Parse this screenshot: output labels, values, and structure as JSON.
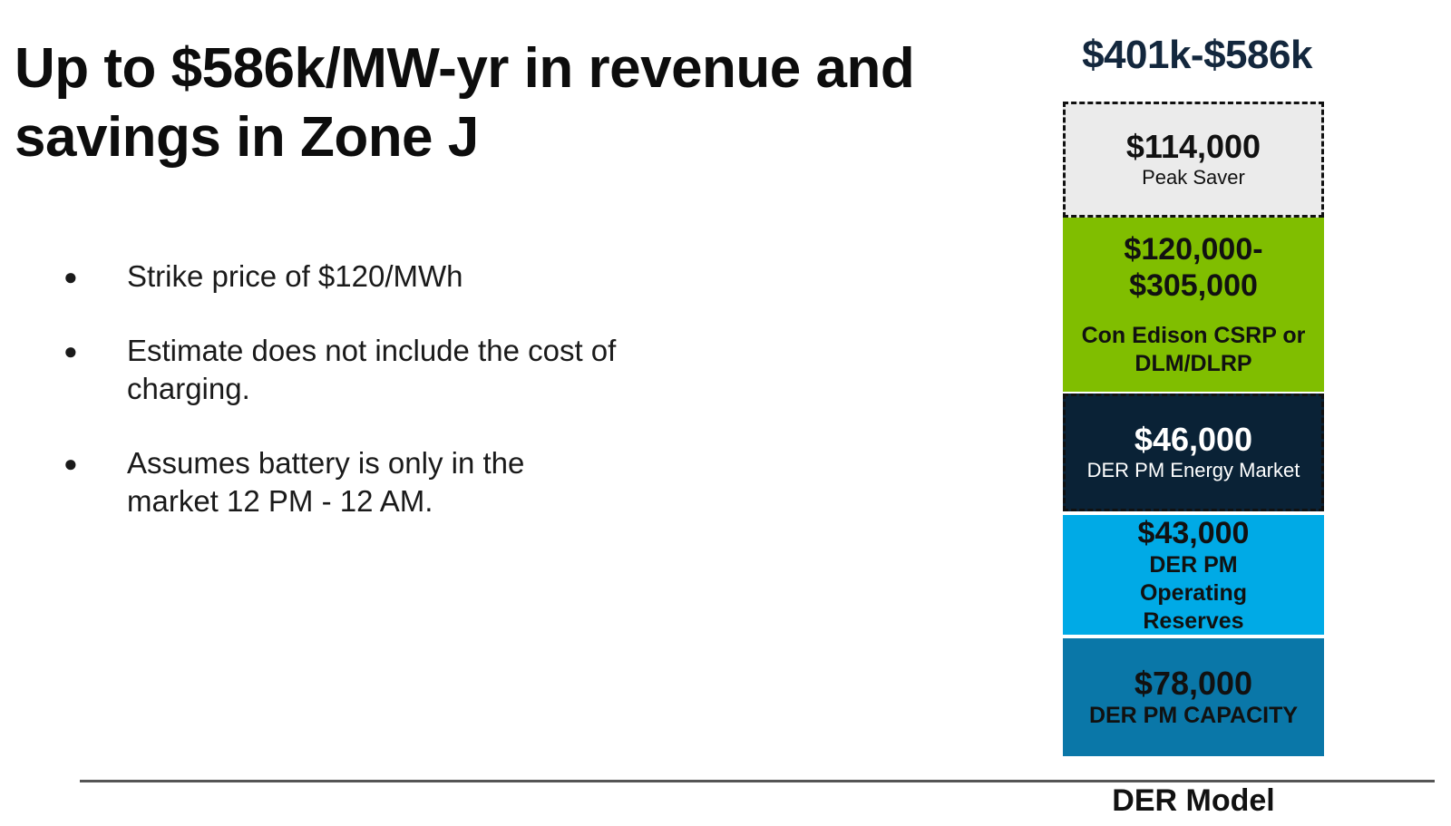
{
  "slide": {
    "title": "Up to $586k/MW-yr in revenue and savings in Zone J",
    "bullets": [
      "Strike price of $120/MWh",
      "Estimate does not include the cost of charging.",
      "Assumes battery is only in the market 12 PM - 12 AM."
    ]
  },
  "chart_data": {
    "type": "bar",
    "stacked": true,
    "categories": [
      "DER Model"
    ],
    "total_label": "$401k-$586k",
    "series": [
      {
        "name": "DER PM CAPACITY",
        "value_label": "$78,000",
        "values": [
          78000
        ],
        "color": "#0a77a8",
        "text_color": "#111111",
        "label_bold": true,
        "dashed": false
      },
      {
        "name": "DER PM Operating Reserves",
        "display_name": "DER PM\nOperating\nReserves",
        "value_label": "$43,000",
        "values": [
          43000
        ],
        "color": "#00aae6",
        "text_color": "#111111",
        "label_bold": true,
        "dashed": false
      },
      {
        "name": "DER PM Energy Market",
        "value_label": "$46,000",
        "values": [
          46000
        ],
        "color": "#0a2236",
        "text_color": "#ffffff",
        "label_bold": false,
        "dashed": true
      },
      {
        "name": "Con Edison CSRP or DLM/DLRP",
        "display_name": "Con Edison CSRP or\nDLM/DLRP",
        "value_label": "$120,000-\n$305,000",
        "values": [
          [
            120000,
            305000
          ]
        ],
        "color": "#80be00",
        "text_color": "#111111",
        "label_bold": true,
        "dashed": false
      },
      {
        "name": "Peak Saver",
        "value_label": "$114,000",
        "values": [
          114000
        ],
        "color": "#ebebeb",
        "text_color": "#111111",
        "label_bold": false,
        "dashed": true
      }
    ],
    "grid": false,
    "legend": "none"
  }
}
